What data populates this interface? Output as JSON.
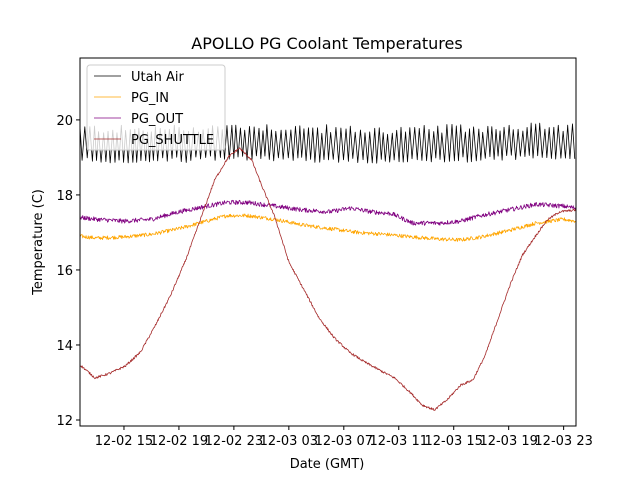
{
  "chart_data": {
    "type": "line",
    "title": "APOLLO PG Coolant Temperatures",
    "xlabel": "Date (GMT)",
    "ylabel": "Temperature (C)",
    "x_unit": "hours since 12-02 00:00",
    "xlim": [
      11.8,
      47.9
    ],
    "ylim": [
      11.84,
      21.65
    ],
    "x_ticks": [
      {
        "value": 15,
        "label": "12-02 15"
      },
      {
        "value": 19,
        "label": "12-02 19"
      },
      {
        "value": 23,
        "label": "12-02 23"
      },
      {
        "value": 27,
        "label": "12-03 03"
      },
      {
        "value": 31,
        "label": "12-03 07"
      },
      {
        "value": 35,
        "label": "12-03 11"
      },
      {
        "value": 39,
        "label": "12-03 15"
      },
      {
        "value": 43,
        "label": "12-03 19"
      },
      {
        "value": 47,
        "label": "12-03 23"
      }
    ],
    "y_ticks": [
      {
        "value": 12,
        "label": "12"
      },
      {
        "value": 14,
        "label": "14"
      },
      {
        "value": 16,
        "label": "16"
      },
      {
        "value": 18,
        "label": "18"
      },
      {
        "value": 20,
        "label": "20"
      }
    ],
    "grid": false,
    "legend": {
      "position": "top-left"
    },
    "series": [
      {
        "name": "Utah Air",
        "color": "#000000",
        "style": "oscillating",
        "oscillation": {
          "low": 19.0,
          "high": 19.75,
          "period_hours": 0.33
        },
        "x": [
          11.8,
          16,
          20,
          24,
          28,
          32,
          36,
          40,
          44,
          47.9
        ],
        "values": [
          19.35,
          19.3,
          19.35,
          19.4,
          19.35,
          19.3,
          19.3,
          19.35,
          19.4,
          19.35
        ]
      },
      {
        "name": "PG_IN",
        "color": "#ffa500",
        "style": "noisy",
        "noise": 0.05,
        "x": [
          11.8,
          13,
          15,
          17,
          19,
          21,
          22.5,
          24,
          26,
          28,
          30,
          32,
          34,
          36,
          38,
          39.5,
          41,
          43,
          45,
          47,
          47.9
        ],
        "values": [
          16.9,
          16.85,
          16.88,
          16.95,
          17.1,
          17.3,
          17.45,
          17.45,
          17.35,
          17.2,
          17.1,
          17.0,
          16.95,
          16.88,
          16.82,
          16.8,
          16.88,
          17.05,
          17.25,
          17.35,
          17.3
        ]
      },
      {
        "name": "PG_OUT",
        "color": "#800080",
        "style": "noisy",
        "noise": 0.06,
        "x": [
          11.8,
          13,
          15,
          17,
          19,
          21,
          22.5,
          24,
          26,
          28,
          30,
          31.5,
          33,
          34.5,
          36,
          38,
          39.5,
          41,
          43,
          45,
          47,
          47.9
        ],
        "values": [
          17.4,
          17.35,
          17.3,
          17.35,
          17.55,
          17.7,
          17.8,
          17.8,
          17.7,
          17.6,
          17.55,
          17.65,
          17.55,
          17.5,
          17.25,
          17.25,
          17.3,
          17.45,
          17.6,
          17.75,
          17.7,
          17.65
        ]
      },
      {
        "name": "PG_SHUTTLE",
        "color": "#a52a2a",
        "style": "noisy",
        "noise": 0.03,
        "x": [
          11.8,
          12.9,
          14.0,
          15.1,
          16.2,
          17.3,
          18.4,
          19.5,
          20.5,
          21.6,
          22.6,
          23.4,
          24.3,
          25.0,
          26.0,
          27.0,
          28.1,
          29.2,
          30.3,
          31.4,
          32.5,
          33.6,
          34.7,
          35.8,
          36.7,
          37.6,
          38.5,
          39.5,
          40.4,
          41.3,
          42.2,
          43.1,
          44.0,
          45.0,
          45.8,
          46.7,
          47.9
        ],
        "values": [
          13.47,
          13.12,
          13.25,
          13.44,
          13.81,
          14.53,
          15.33,
          16.27,
          17.28,
          18.4,
          19.01,
          19.25,
          18.93,
          18.27,
          17.39,
          16.21,
          15.47,
          14.72,
          14.19,
          13.81,
          13.55,
          13.33,
          13.12,
          12.75,
          12.4,
          12.27,
          12.53,
          12.93,
          13.07,
          13.73,
          14.67,
          15.6,
          16.4,
          16.93,
          17.33,
          17.55,
          17.6
        ]
      }
    ]
  }
}
